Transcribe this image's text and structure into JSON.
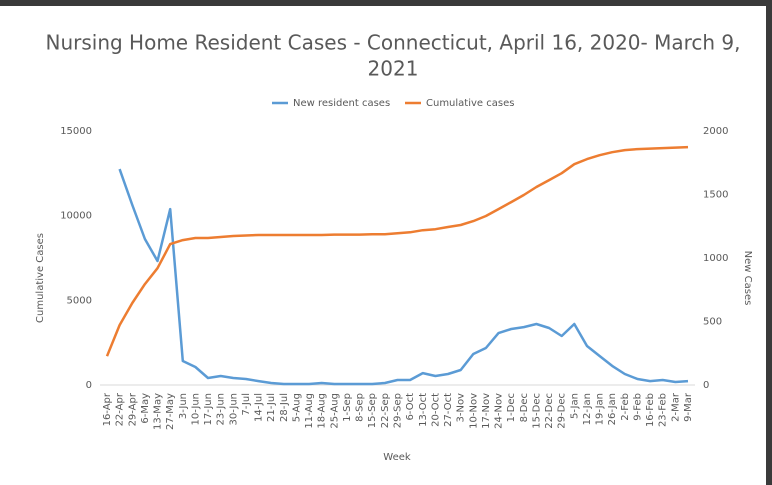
{
  "chart_data": {
    "type": "line",
    "title": "Nursing Home Resident Cases - Connecticut, April 16, 2020- March 9, 2021",
    "title_lines": [
      "Nursing Home Resident Cases - Connecticut, April 16, 2020- March 9,",
      "2021"
    ],
    "xlabel": "Week",
    "ylabel": "Cumulative Cases",
    "y2label": "New Cases",
    "legend": "top",
    "grid": false,
    "categories": [
      "16-Apr",
      "22-Apr",
      "29-Apr",
      "6-May",
      "13-May",
      "27-May",
      "3-Jun",
      "10-Jun",
      "17-Jun",
      "23-Jun",
      "30-Jun",
      "7-Jul",
      "14-Jul",
      "21-Jul",
      "28-Jul",
      "5-Aug",
      "11-Aug",
      "18-Aug",
      "25-Aug",
      "1-Sep",
      "8-Sep",
      "15-Sep",
      "22-Sep",
      "29-Sep",
      "6-Oct",
      "13-Oct",
      "20-Oct",
      "27-Oct",
      "3-Nov",
      "10-Nov",
      "17-Nov",
      "24-Nov",
      "1-Dec",
      "8-Dec",
      "15-Dec",
      "22-Dec",
      "29-Dec",
      "5-Jan",
      "12-Jan",
      "19-Jan",
      "26-Jan",
      "2-Feb",
      "9-Feb",
      "16-Feb",
      "23-Feb",
      "2-Mar",
      "9-Mar"
    ],
    "series": [
      {
        "name": "New resident cases",
        "color": "#5b9bd5",
        "axis": "y2",
        "values": [
          null,
          1700,
          1417,
          1150,
          976,
          1385,
          189,
          142,
          55,
          71,
          55,
          47,
          31,
          16,
          8,
          8,
          8,
          16,
          8,
          8,
          8,
          8,
          16,
          39,
          39,
          94,
          71,
          87,
          118,
          244,
          291,
          409,
          441,
          456,
          480,
          449,
          386,
          480,
          307,
          228,
          150,
          87,
          47,
          31,
          39,
          24,
          31
        ]
      },
      {
        "name": "Cumulative cases",
        "color": "#ed7d31",
        "values": [
          1700,
          3540,
          4840,
          5960,
          6900,
          8320,
          8560,
          8680,
          8680,
          8740,
          8800,
          8830,
          8860,
          8860,
          8860,
          8860,
          8860,
          8860,
          8880,
          8880,
          8880,
          8900,
          8900,
          8960,
          9020,
          9140,
          9200,
          9330,
          9450,
          9680,
          9980,
          10390,
          10800,
          11220,
          11690,
          12100,
          12510,
          13040,
          13340,
          13570,
          13750,
          13870,
          13930,
          13960,
          13990,
          14020,
          14050
        ]
      }
    ],
    "ylim": [
      0,
      15000
    ],
    "yticks": [
      0,
      5000,
      10000,
      15000
    ],
    "y2lim": [
      0,
      2000
    ],
    "y2ticks": [
      0,
      500,
      1000,
      1500,
      2000
    ]
  }
}
